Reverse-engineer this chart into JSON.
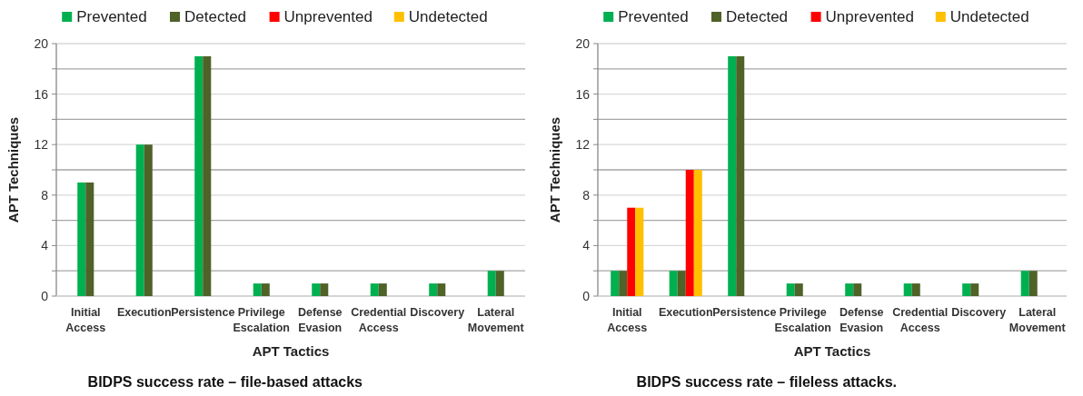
{
  "chart_data": [
    {
      "type": "bar",
      "title": "BIDPS success rate – file-based attacks",
      "xlabel": "APT Tactics",
      "ylabel": "APT Techniques",
      "categories": [
        "Initial Access",
        "Execution",
        "Persistence",
        "Privilege Escalation",
        "Defense Evasion",
        "Credential Access",
        "Discovery",
        "Lateral Movement"
      ],
      "series": [
        {
          "name": "Prevented",
          "color": "#00b050",
          "values": [
            9,
            12,
            19,
            1,
            1,
            1,
            1,
            2
          ]
        },
        {
          "name": "Detected",
          "color": "#4f6228",
          "values": [
            9,
            12,
            19,
            1,
            1,
            1,
            1,
            2
          ]
        },
        {
          "name": "Unprevented",
          "color": "#ff0000",
          "values": [
            null,
            null,
            null,
            null,
            null,
            null,
            null,
            null
          ]
        },
        {
          "name": "Undetected",
          "color": "#ffc000",
          "values": [
            null,
            null,
            null,
            null,
            null,
            null,
            null,
            null
          ]
        }
      ],
      "ylim": [
        0,
        20
      ],
      "yticks": [
        0,
        {
          "value": 2,
          "label": null
        },
        4,
        {
          "value": 6,
          "label": null
        },
        8,
        {
          "value": 10,
          "label": null
        },
        12,
        {
          "value": 14,
          "label": null
        },
        16,
        {
          "value": 18,
          "label": null
        },
        20
      ],
      "grid": "y",
      "legend": "top"
    },
    {
      "type": "bar",
      "title": "BIDPS success rate – fileless attacks.",
      "xlabel": "APT Tactics",
      "ylabel": "APT Techniques",
      "categories": [
        "Initial Access",
        "Execution",
        "Persistence",
        "Privilege Escalation",
        "Defense Evasion",
        "Credential Access",
        "Discovery",
        "Lateral Movement"
      ],
      "series": [
        {
          "name": "Prevented",
          "color": "#00b050",
          "values": [
            2,
            2,
            19,
            1,
            1,
            1,
            1,
            2
          ]
        },
        {
          "name": "Detected",
          "color": "#4f6228",
          "values": [
            2,
            2,
            19,
            1,
            1,
            1,
            1,
            2
          ]
        },
        {
          "name": "Unprevented",
          "color": "#ff0000",
          "values": [
            7,
            10,
            0,
            0,
            0,
            0,
            0,
            0
          ]
        },
        {
          "name": "Undetected",
          "color": "#ffc000",
          "values": [
            7,
            10,
            0,
            0,
            0,
            0,
            0,
            0
          ]
        }
      ],
      "ylim": [
        0,
        20
      ],
      "yticks": [
        0,
        {
          "value": 2,
          "label": null
        },
        4,
        {
          "value": 6,
          "label": null
        },
        8,
        {
          "value": 10,
          "label": null
        },
        12,
        {
          "value": 14,
          "label": null
        },
        16,
        {
          "value": 18,
          "label": null
        },
        20
      ],
      "grid": "y",
      "legend": "top"
    }
  ]
}
